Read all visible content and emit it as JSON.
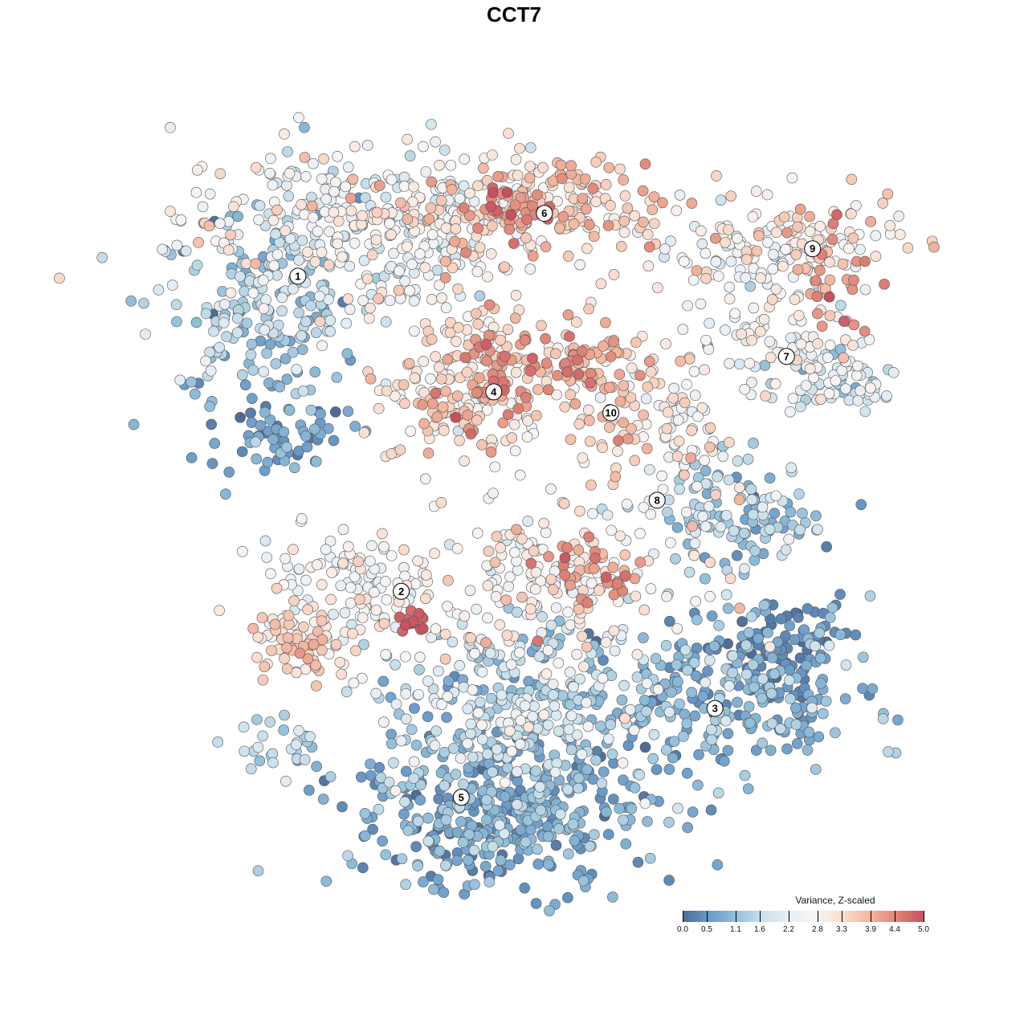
{
  "chart_data": {
    "type": "scatter",
    "title": "CCT7",
    "xlabel": "",
    "ylabel": "",
    "axes_visible": false,
    "xlim": [
      -50,
      56
    ],
    "ylim": [
      -52,
      52
    ],
    "legend": {
      "title": "Variance, Z-scaled",
      "placement": "bottom-right",
      "ticks": [
        "0.0",
        "0.5",
        "1.1",
        "1.6",
        "2.2",
        "2.8",
        "3.3",
        "3.9",
        "4.4",
        "5.0"
      ],
      "range": [
        0,
        5
      ]
    },
    "color_stops": [
      "#4d6d96",
      "#6a9bcb",
      "#92c0da",
      "#c9e0ec",
      "#e8eff5",
      "#f7f5f4",
      "#fadccd",
      "#f2b59e",
      "#df8476",
      "#c8505f"
    ],
    "cluster_labels": [
      {
        "label": "1",
        "x": -29.9,
        "y": 32.9
      },
      {
        "label": "2",
        "x": -15.6,
        "y": -10.7
      },
      {
        "label": "3",
        "x": 27.8,
        "y": -26.9
      },
      {
        "label": "4",
        "x": -2.8,
        "y": 16.9
      },
      {
        "label": "5",
        "x": -7.3,
        "y": -39.2
      },
      {
        "label": "6",
        "x": 4.2,
        "y": 41.6
      },
      {
        "label": "7",
        "x": 37.7,
        "y": 21.8
      },
      {
        "label": "8",
        "x": 19.8,
        "y": 1.9
      },
      {
        "label": "9",
        "x": 41.3,
        "y": 36.7
      },
      {
        "label": "10",
        "x": 13.4,
        "y": 14.0
      }
    ],
    "point_groups": [
      {
        "cluster": "1",
        "x": -22.2,
        "y": 41.1,
        "sx": 12,
        "sy": 5.5,
        "n": 260,
        "mean": 2.5,
        "sd": 0.6
      },
      {
        "cluster": "1",
        "x": -35.6,
        "y": 28.9,
        "sx": 7.5,
        "sy": 6.5,
        "n": 210,
        "mean": 1.4,
        "sd": 0.5
      },
      {
        "cluster": "1",
        "x": -32.2,
        "y": 11.1,
        "sx": 5,
        "sy": 2.8,
        "n": 60,
        "mean": 0.5,
        "sd": 0.3
      },
      {
        "cluster": "1",
        "x": -13.3,
        "y": 37.8,
        "sx": 4.5,
        "sy": 5.5,
        "n": 80,
        "mean": 2.3,
        "sd": 0.6
      },
      {
        "cluster": "6",
        "x": 4.4,
        "y": 42.2,
        "sx": 9,
        "sy": 3.8,
        "n": 200,
        "mean": 3.4,
        "sd": 0.45
      },
      {
        "cluster": "6",
        "x": 0,
        "y": 42.2,
        "sx": 2.8,
        "sy": 2,
        "n": 30,
        "mean": 4.4,
        "sd": 0.3
      },
      {
        "cluster": "9",
        "x": 41.1,
        "y": 36.7,
        "sx": 6.5,
        "sy": 3.3,
        "n": 100,
        "mean": 3.0,
        "sd": 0.6
      },
      {
        "cluster": "9",
        "x": 44.4,
        "y": 33.3,
        "sx": 2.2,
        "sy": 4.4,
        "n": 30,
        "mean": 4.2,
        "sd": 0.4
      },
      {
        "cluster": "9",
        "x": 31.1,
        "y": 35.6,
        "sx": 4.4,
        "sy": 2.8,
        "n": 50,
        "mean": 2.3,
        "sd": 0.5
      },
      {
        "cluster": "7",
        "x": 35.6,
        "y": 24.4,
        "sx": 6.5,
        "sy": 3.3,
        "n": 80,
        "mean": 2.5,
        "sd": 0.5
      },
      {
        "cluster": "7",
        "x": 44.4,
        "y": 18.9,
        "sx": 5.5,
        "sy": 2.8,
        "n": 70,
        "mean": 2.0,
        "sd": 0.5
      },
      {
        "cluster": "4",
        "x": -6.7,
        "y": 17.8,
        "sx": 5.5,
        "sy": 6,
        "n": 200,
        "mean": 3.3,
        "sd": 0.5
      },
      {
        "cluster": "4",
        "x": -2.2,
        "y": 18.9,
        "sx": 2.8,
        "sy": 2.8,
        "n": 40,
        "mean": 4.3,
        "sd": 0.3
      },
      {
        "cluster": "10",
        "x": 13.3,
        "y": 17.8,
        "sx": 4.4,
        "sy": 5,
        "n": 100,
        "mean": 3.5,
        "sd": 0.5
      },
      {
        "cluster": "10",
        "x": 6.7,
        "y": 21.1,
        "sx": 2.2,
        "sy": 1.8,
        "n": 25,
        "mean": 4.1,
        "sd": 0.4
      },
      {
        "cluster": "8",
        "x": 23.3,
        "y": 11.1,
        "sx": 3.3,
        "sy": 4.4,
        "n": 60,
        "mean": 2.8,
        "sd": 0.5
      },
      {
        "cluster": "8",
        "x": 31.1,
        "y": 0,
        "sx": 5,
        "sy": 3.8,
        "n": 120,
        "mean": 1.4,
        "sd": 0.5
      },
      {
        "cluster": "2",
        "x": -22.2,
        "y": -10,
        "sx": 6.5,
        "sy": 3.8,
        "n": 120,
        "mean": 2.5,
        "sd": 0.4
      },
      {
        "cluster": "2",
        "x": -28.9,
        "y": -17.8,
        "sx": 4.4,
        "sy": 2.2,
        "n": 70,
        "mean": 3.5,
        "sd": 0.3
      },
      {
        "cluster": "2",
        "x": -13.9,
        "y": -15,
        "sx": 1.1,
        "sy": 0.9,
        "n": 15,
        "mean": 4.8,
        "sd": 0.15
      },
      {
        "cluster": "mid",
        "x": 6.7,
        "y": -8.9,
        "sx": 9,
        "sy": 5.5,
        "n": 200,
        "mean": 2.8,
        "sd": 0.6
      },
      {
        "cluster": "mid",
        "x": 10,
        "y": -7.8,
        "sx": 3.3,
        "sy": 2.2,
        "n": 30,
        "mean": 4.2,
        "sd": 0.35
      },
      {
        "cluster": "3",
        "x": 28.9,
        "y": -24.4,
        "sx": 10,
        "sy": 6,
        "n": 300,
        "mean": 0.9,
        "sd": 0.45
      },
      {
        "cluster": "3",
        "x": 37.8,
        "y": -17.8,
        "sx": 3.8,
        "sy": 2.8,
        "n": 60,
        "mean": 0.3,
        "sd": 0.2
      },
      {
        "cluster": "5",
        "x": -2.2,
        "y": -41.1,
        "sx": 10,
        "sy": 5.5,
        "n": 400,
        "mean": 0.8,
        "sd": 0.4
      },
      {
        "cluster": "5",
        "x": 0,
        "y": -26.7,
        "sx": 10,
        "sy": 5.5,
        "n": 300,
        "mean": 1.6,
        "sd": 0.6
      },
      {
        "cluster": "small",
        "x": -32.2,
        "y": -32.2,
        "sx": 3.8,
        "sy": 2.2,
        "n": 30,
        "mean": 1.5,
        "sd": 0.4
      }
    ]
  }
}
